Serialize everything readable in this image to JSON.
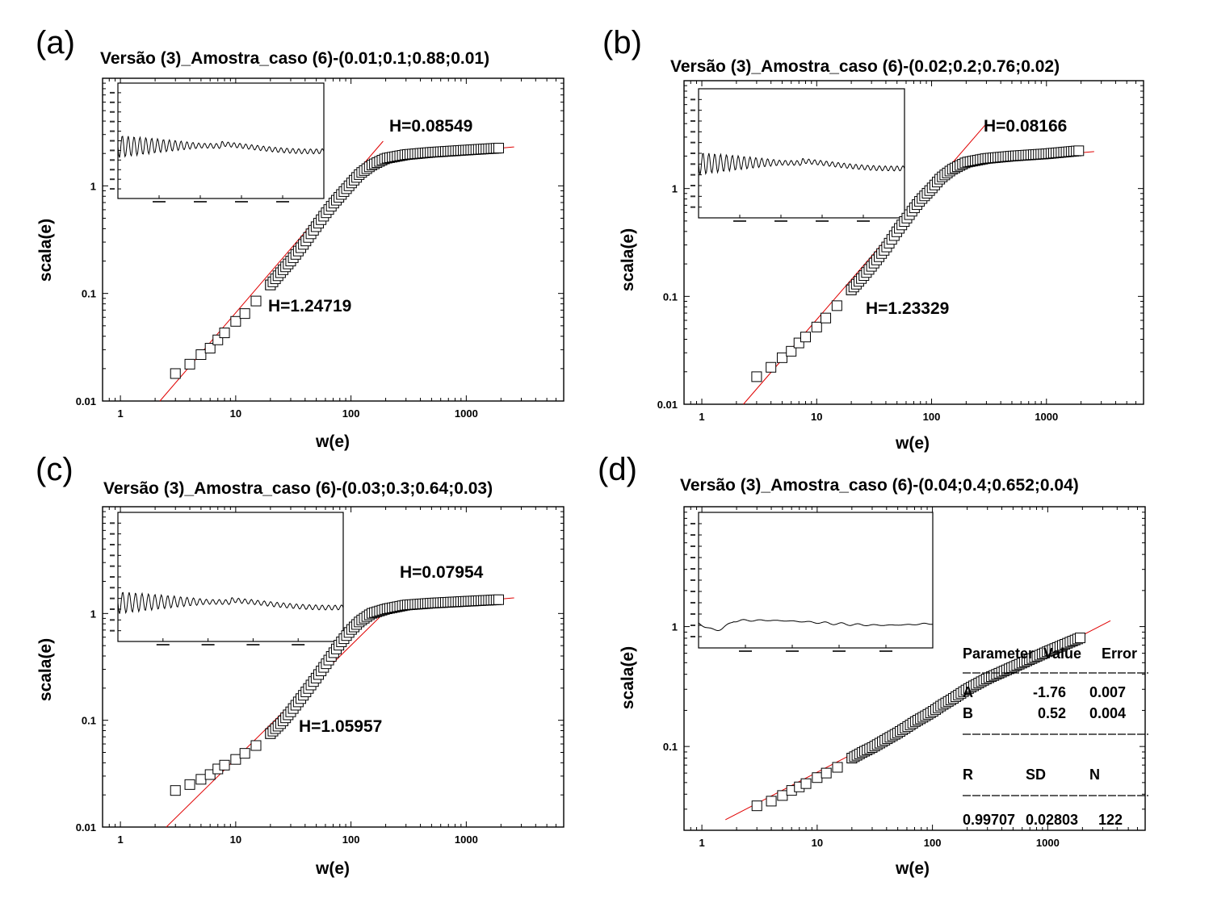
{
  "panels": [
    {
      "letter": "(a)",
      "title": "Versão (3)_Amostra_caso (6)-(0.01;0.1;0.88;0.01)",
      "xlabel": "w(e)",
      "ylabel": "scala(e)",
      "annotations": [
        "H=0.08549",
        "H=1.24719"
      ]
    },
    {
      "letter": "(b)",
      "title": "Versão (3)_Amostra_caso (6)-(0.02;0.2;0.76;0.02)",
      "xlabel": "w(e)",
      "ylabel": "scala(e)",
      "annotations": [
        "H=0.08166",
        "H=1.23329"
      ]
    },
    {
      "letter": "(c)",
      "title": "Versão (3)_Amostra_caso (6)-(0.03;0.3;0.64;0.03)",
      "xlabel": "w(e)",
      "ylabel": "scala(e)",
      "annotations": [
        "H=0.07954",
        "H=1.05957"
      ]
    },
    {
      "letter": "(d)",
      "title": "Versão (3)_Amostra_caso (6)-(0.04;0.4;0.652;0.04)",
      "xlabel": "w(e)",
      "ylabel": "scala(e)",
      "annotations": [],
      "stats": {
        "header": [
          "Parameter",
          "Value",
          "Error"
        ],
        "rows": [
          [
            "A",
            "-1.76",
            "0.007"
          ],
          [
            "B",
            "0.52",
            "0.004"
          ]
        ],
        "summary_header": [
          "R",
          "SD",
          "N"
        ],
        "summary_values": [
          "0.99707",
          "0.02803",
          "122"
        ]
      }
    }
  ],
  "chart_data": [
    {
      "type": "scatter",
      "title": "Versão (3)_Amostra_caso (6)-(0.01;0.1;0.88;0.01)",
      "xlabel": "w(e)",
      "ylabel": "scala(e)",
      "xscale": "log",
      "yscale": "log",
      "xlim": [
        0.7,
        7000
      ],
      "ylim": [
        0.01,
        10
      ],
      "xticks": [
        "1",
        "10",
        "100",
        "1000"
      ],
      "yticks": [
        "0.01",
        "0.1",
        "1"
      ],
      "series": [
        {
          "x": [
            3,
            4,
            5,
            6,
            7,
            8,
            10,
            12,
            15,
            20,
            25,
            30,
            40,
            50,
            60,
            70,
            80,
            100,
            120,
            150,
            200,
            300,
            500,
            1000,
            2000
          ],
          "y": [
            0.018,
            0.022,
            0.027,
            0.031,
            0.037,
            0.043,
            0.055,
            0.065,
            0.085,
            0.12,
            0.16,
            0.2,
            0.3,
            0.42,
            0.55,
            0.68,
            0.8,
            1.05,
            1.3,
            1.55,
            1.8,
            1.95,
            2.05,
            2.15,
            2.25
          ]
        }
      ],
      "fits": [
        {
          "label": "H=1.24719",
          "slope": 1.24719,
          "x": [
            2.2,
            190
          ],
          "y": [
            0.01,
            2.6
          ]
        },
        {
          "label": "H=0.08549",
          "slope": 0.08549,
          "x": [
            150,
            2600
          ],
          "y": [
            1.75,
            2.3
          ]
        }
      ],
      "inset": {
        "series": "oscillating",
        "y_level": 0.45
      }
    },
    {
      "type": "scatter",
      "title": "Versão (3)_Amostra_caso (6)-(0.02;0.2;0.76;0.02)",
      "xlabel": "w(e)",
      "ylabel": "scala(e)",
      "xscale": "log",
      "yscale": "log",
      "xlim": [
        0.7,
        7000
      ],
      "ylim": [
        0.01,
        10
      ],
      "xticks": [
        "1",
        "10",
        "100",
        "1000"
      ],
      "yticks": [
        "0.01",
        "0.1",
        "1"
      ],
      "series": [
        {
          "x": [
            3,
            4,
            5,
            6,
            7,
            8,
            10,
            12,
            15,
            20,
            25,
            30,
            40,
            50,
            60,
            70,
            80,
            100,
            120,
            150,
            200,
            300,
            500,
            1000,
            2000
          ],
          "y": [
            0.018,
            0.022,
            0.027,
            0.031,
            0.037,
            0.042,
            0.052,
            0.063,
            0.082,
            0.115,
            0.15,
            0.19,
            0.28,
            0.4,
            0.52,
            0.65,
            0.78,
            1.0,
            1.25,
            1.5,
            1.75,
            1.9,
            2.0,
            2.1,
            2.25
          ]
        }
      ],
      "fits": [
        {
          "label": "H=1.23329",
          "slope": 1.23329,
          "x": [
            2.3,
            300
          ],
          "y": [
            0.01,
            4.0
          ]
        },
        {
          "label": "H=0.08166",
          "slope": 0.08166,
          "x": [
            150,
            2600
          ],
          "y": [
            1.7,
            2.2
          ]
        }
      ],
      "inset": {
        "series": "oscillating",
        "y_level": 0.42
      }
    },
    {
      "type": "scatter",
      "title": "Versão (3)_Amostra_caso (6)-(0.03;0.3;0.64;0.03)",
      "xlabel": "w(e)",
      "ylabel": "scala(e)",
      "xscale": "log",
      "yscale": "log",
      "xlim": [
        0.7,
        7000
      ],
      "ylim": [
        0.01,
        10
      ],
      "xticks": [
        "1",
        "10",
        "100",
        "1000"
      ],
      "yticks": [
        "0.01",
        "0.1",
        "1"
      ],
      "series": [
        {
          "x": [
            3,
            4,
            5,
            6,
            7,
            8,
            10,
            12,
            15,
            20,
            25,
            30,
            40,
            50,
            60,
            70,
            80,
            100,
            120,
            150,
            200,
            300,
            500,
            1000,
            2000
          ],
          "y": [
            0.022,
            0.025,
            0.028,
            0.031,
            0.035,
            0.038,
            0.043,
            0.049,
            0.058,
            0.075,
            0.095,
            0.12,
            0.18,
            0.25,
            0.33,
            0.42,
            0.52,
            0.7,
            0.85,
            1.0,
            1.1,
            1.2,
            1.25,
            1.3,
            1.35
          ]
        }
      ],
      "fits": [
        {
          "label": "H=1.05957",
          "slope": 1.05957,
          "x": [
            2.5,
            200
          ],
          "y": [
            0.01,
            1.05
          ]
        },
        {
          "label": "H=0.07954",
          "slope": 0.07954,
          "x": [
            200,
            2600
          ],
          "y": [
            1.1,
            1.4
          ]
        }
      ],
      "inset": {
        "series": "oscillating",
        "y_level": 0.3
      }
    },
    {
      "type": "scatter",
      "title": "Versão (3)_Amostra_caso (6)-(0.04;0.4;0.652;0.04)",
      "xlabel": "w(e)",
      "ylabel": "scala(e)",
      "xscale": "log",
      "yscale": "log",
      "xlim": [
        0.7,
        7000
      ],
      "ylim": [
        0.02,
        10
      ],
      "xticks": [
        "1",
        "10",
        "100",
        "1000"
      ],
      "yticks": [
        "0.1",
        "1"
      ],
      "series": [
        {
          "x": [
            3,
            4,
            5,
            6,
            7,
            8,
            10,
            12,
            15,
            20,
            25,
            30,
            40,
            50,
            60,
            70,
            80,
            100,
            120,
            150,
            200,
            300,
            500,
            1000,
            2000
          ],
          "y": [
            0.032,
            0.035,
            0.039,
            0.043,
            0.046,
            0.049,
            0.055,
            0.06,
            0.067,
            0.08,
            0.09,
            0.098,
            0.115,
            0.13,
            0.145,
            0.16,
            0.172,
            0.195,
            0.22,
            0.25,
            0.3,
            0.37,
            0.46,
            0.62,
            0.82
          ]
        }
      ],
      "fits": [
        {
          "label": "",
          "slope": 0.52,
          "x": [
            1.6,
            3500
          ],
          "y": [
            0.0245,
            1.12
          ]
        }
      ],
      "inset": {
        "series": "flat",
        "y_level": 0.15
      }
    }
  ]
}
